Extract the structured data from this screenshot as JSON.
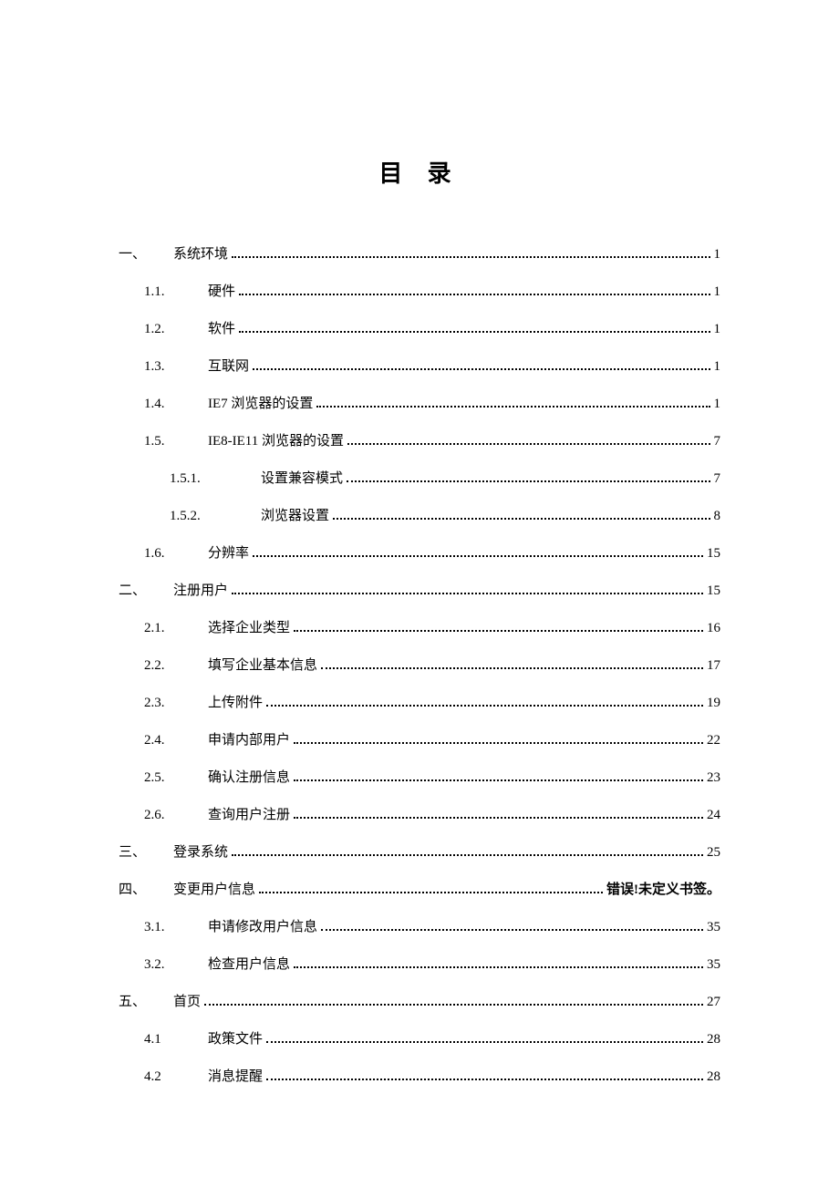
{
  "title": "目 录",
  "entries": [
    {
      "level": 0,
      "number": "一、",
      "label": "系统环境",
      "page": "1"
    },
    {
      "level": 1,
      "number": "1.1.",
      "label": "硬件",
      "page": "1"
    },
    {
      "level": 1,
      "number": "1.2.",
      "label": "软件",
      "page": "1"
    },
    {
      "level": 1,
      "number": "1.3.",
      "label": "互联网",
      "page": "1"
    },
    {
      "level": 1,
      "number": "1.4.",
      "label": "IE7 浏览器的设置",
      "page": "1"
    },
    {
      "level": 1,
      "number": "1.5.",
      "label": "IE8-IE11 浏览器的设置",
      "page": "7"
    },
    {
      "level": 2,
      "number": "1.5.1.",
      "label": "设置兼容模式",
      "page": "7"
    },
    {
      "level": 2,
      "number": "1.5.2.",
      "label": "浏览器设置",
      "page": "8"
    },
    {
      "level": 1,
      "number": "1.6.",
      "label": "分辨率",
      "page": "15"
    },
    {
      "level": 0,
      "number": "二、",
      "label": "注册用户",
      "page": "15"
    },
    {
      "level": 1,
      "number": "2.1.",
      "label": "选择企业类型",
      "page": "16"
    },
    {
      "level": 1,
      "number": "2.2.",
      "label": "填写企业基本信息",
      "page": "17"
    },
    {
      "level": 1,
      "number": "2.3.",
      "label": "上传附件",
      "page": "19"
    },
    {
      "level": 1,
      "number": "2.4.",
      "label": "申请内部用户",
      "page": "22"
    },
    {
      "level": 1,
      "number": "2.5.",
      "label": "确认注册信息",
      "page": "23"
    },
    {
      "level": 1,
      "number": "2.6.",
      "label": "查询用户注册",
      "page": "24"
    },
    {
      "level": 0,
      "number": "三、",
      "label": "登录系统",
      "page": "25"
    },
    {
      "level": 0,
      "number": "四、",
      "label": "变更用户信息",
      "page": "错误!未定义书签。",
      "error": true
    },
    {
      "level": 1,
      "number": "3.1.",
      "label": "申请修改用户信息",
      "page": "35"
    },
    {
      "level": 1,
      "number": "3.2.",
      "label": "检查用户信息",
      "page": "35"
    },
    {
      "level": 0,
      "number": "五、",
      "label": "首页",
      "page": "27"
    },
    {
      "level": 1,
      "number": "4.1",
      "label": "政策文件",
      "page": "28"
    },
    {
      "level": 1,
      "number": "4.2",
      "label": "消息提醒",
      "page": "28"
    }
  ]
}
